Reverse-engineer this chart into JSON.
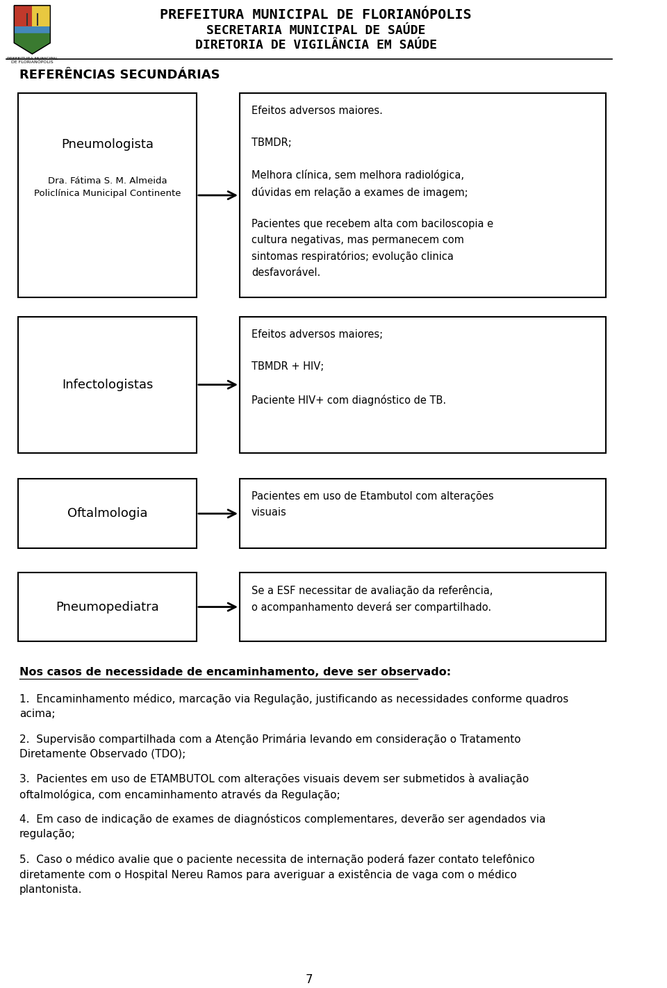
{
  "bg_color": "#ffffff",
  "header_line1": "PREFEITURA MUNICIPAL DE FLORIANÓPOLIS",
  "header_line2": "SECRETARIA MUNICIPAL DE SAÚDE",
  "header_line3": "DIRETORIA DE VIGILÂNCIA EM SAÚDE",
  "section_title": "REFERÊNCIAS SECUNDÁRIAS",
  "rows": [
    {
      "left_title": "Pneumologista",
      "left_sub": "Dra. Fátima S. M. Almeida\nPoliclínica Municipal Continente",
      "right_text": "Efeitos adversos maiores.\n\nTBMDR;\n\nMelhora clínica, sem melhora radiológica,\ndúvidas em relação a exames de imagem;\n\nPacientes que recebem alta com baciloscopia e\ncultura negativas, mas permanecem com\nsintomas respiratórios; evolução clinica\ndesfavorável."
    },
    {
      "left_title": "Infectologistas",
      "left_sub": "",
      "right_text": "Efeitos adversos maiores;\n\nTBMDR + HIV;\n\nPaciente HIV+ com diagnóstico de TB."
    },
    {
      "left_title": "Oftalmologia",
      "left_sub": "",
      "right_text": "Pacientes em uso de Etambutol com alterações\nvisuais"
    },
    {
      "left_title": "Pneumopediatra",
      "left_sub": "",
      "right_text": "Se a ESF necessitar de avaliação da referência,\no acompanhamento deverá ser compartilhado."
    }
  ],
  "bottom_heading": "Nos casos de necessidade de encaminhamento, deve ser observado:",
  "bottom_items": [
    "1.  Encaminhamento médico, marcação via Regulação, justificando as necessidades conforme quadros\nacima;",
    "2.  Supervisão compartilhada com a Atenção Primária levando em consideração o Tratamento\nDiretamente Observado (TDO);",
    "3.  Pacientes em uso de ETAMBUTOL com alterações visuais devem ser submetidos à avaliação\noftalmológica, com encaminhamento através da Regulação;",
    "4.  Em caso de indicação de exames de diagnósticos complementares, deverão ser agendados via\nregulação;",
    "5.  Caso o médico avalie que o paciente necessita de internação poderá fazer contato telefônico\ndiretamente com o Hospital Nereu Ramos para averiguar a existência de vaga com o médico\nplantonista."
  ],
  "page_number": "7"
}
